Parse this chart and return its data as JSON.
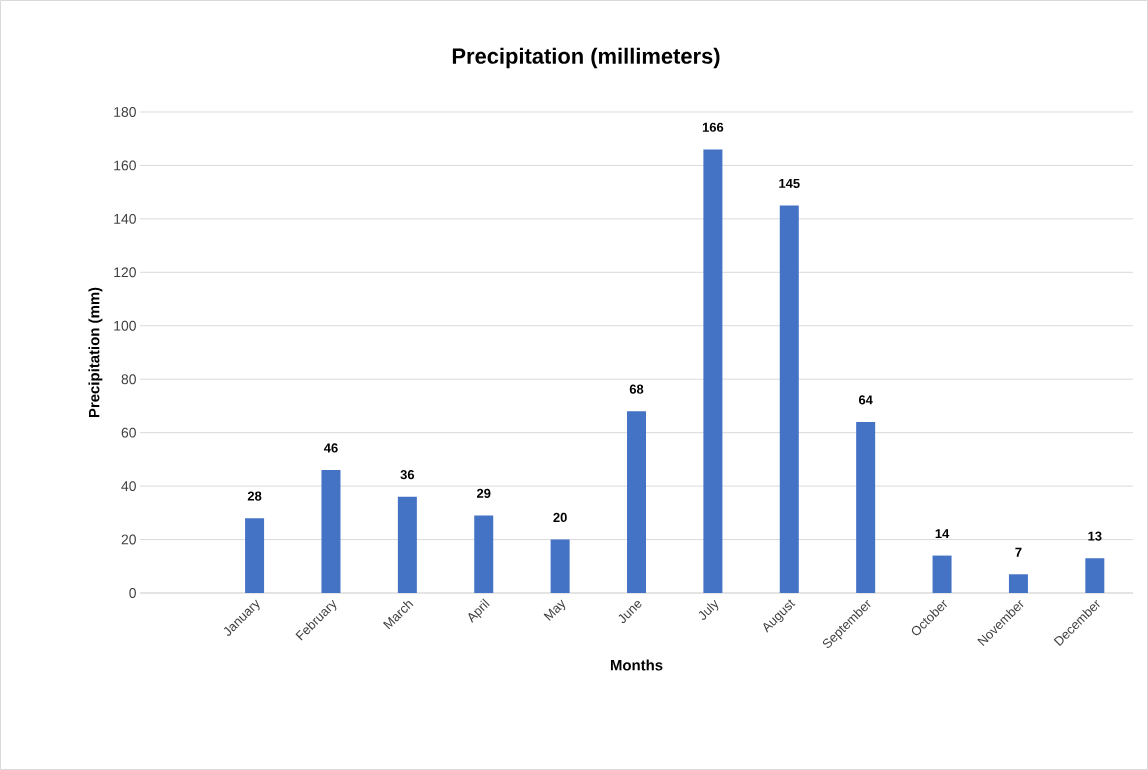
{
  "chart_data": {
    "type": "bar",
    "title": "Precipitation (millimeters)",
    "xlabel": "Months",
    "ylabel": "Precipitation (mm)",
    "categories": [
      null,
      "January",
      "February",
      "March",
      "April",
      "May",
      "June",
      "July",
      "August",
      "September",
      "October",
      "November",
      "December"
    ],
    "values": [
      null,
      28,
      46,
      36,
      29,
      20,
      68,
      166,
      145,
      64,
      14,
      7,
      13
    ],
    "color": "#4472c4",
    "ylim": [
      0,
      180
    ],
    "yticks": [
      0,
      20,
      40,
      60,
      80,
      100,
      120,
      140,
      160,
      180
    ],
    "grid": "y",
    "data_labels": true
  }
}
